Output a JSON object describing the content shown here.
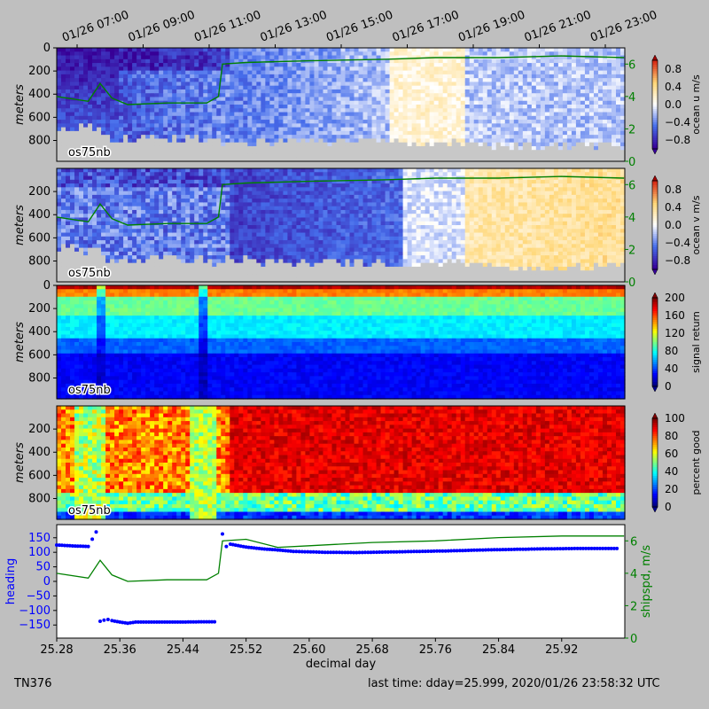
{
  "chart_data": [
    {
      "type": "heatmap",
      "instrument_label": "os75nb",
      "ylabel": "meters",
      "yticks": [
        0,
        200,
        400,
        600,
        800
      ],
      "ylim": [
        0,
        980
      ],
      "inverted_y": true,
      "top_time_ticks": [
        "01/26 07:00",
        "01/26 09:00",
        "01/26 11:00",
        "01/26 13:00",
        "01/26 15:00",
        "01/26 17:00",
        "01/26 19:00",
        "01/26 21:00",
        "01/26 23:00"
      ],
      "colorbar": {
        "label": "ocean u m/s",
        "ticks": [
          "0.8",
          "0.4",
          "0.0",
          "−0.4",
          "−0.8"
        ],
        "range": [
          -1,
          1
        ],
        "colormap": "blue-white-red"
      },
      "right_axis": {
        "ticks": [
          "6",
          "4",
          "2",
          "0"
        ],
        "range": [
          0,
          7
        ],
        "color": "#008000"
      },
      "overlay_shipspd_kts": [
        [
          25.28,
          4.0
        ],
        [
          25.32,
          3.7
        ],
        [
          25.335,
          4.8
        ],
        [
          25.35,
          3.9
        ],
        [
          25.37,
          3.5
        ],
        [
          25.42,
          3.6
        ],
        [
          25.47,
          3.6
        ],
        [
          25.485,
          4.0
        ],
        [
          25.49,
          6.0
        ],
        [
          25.52,
          6.1
        ],
        [
          25.6,
          6.2
        ],
        [
          25.7,
          6.3
        ],
        [
          25.76,
          6.4
        ],
        [
          25.84,
          6.4
        ],
        [
          25.92,
          6.5
        ],
        [
          25.999,
          6.4
        ]
      ]
    },
    {
      "type": "heatmap",
      "instrument_label": "os75nb",
      "ylabel": "meters",
      "yticks": [
        200,
        400,
        600,
        800
      ],
      "ylim": [
        0,
        980
      ],
      "inverted_y": true,
      "colorbar": {
        "label": "ocean v m/s",
        "ticks": [
          "0.8",
          "0.4",
          "0.0",
          "−0.4",
          "−0.8"
        ],
        "range": [
          -1,
          1
        ],
        "colormap": "blue-white-red"
      },
      "right_axis": {
        "ticks": [
          "6",
          "4",
          "2",
          "0"
        ],
        "range": [
          0,
          7
        ],
        "color": "#008000"
      },
      "overlay_shipspd_kts": [
        [
          25.28,
          4.0
        ],
        [
          25.32,
          3.7
        ],
        [
          25.335,
          4.8
        ],
        [
          25.35,
          3.9
        ],
        [
          25.37,
          3.5
        ],
        [
          25.42,
          3.6
        ],
        [
          25.47,
          3.6
        ],
        [
          25.485,
          4.0
        ],
        [
          25.49,
          6.0
        ],
        [
          25.52,
          6.1
        ],
        [
          25.6,
          6.2
        ],
        [
          25.7,
          6.3
        ],
        [
          25.76,
          6.4
        ],
        [
          25.84,
          6.4
        ],
        [
          25.92,
          6.5
        ],
        [
          25.999,
          6.4
        ]
      ]
    },
    {
      "type": "heatmap",
      "instrument_label": "os75nb",
      "ylabel": "meters",
      "yticks": [
        0,
        200,
        400,
        600,
        800
      ],
      "ylim": [
        0,
        980
      ],
      "inverted_y": true,
      "colorbar": {
        "label": "signal return",
        "ticks": [
          "200",
          "160",
          "120",
          "80",
          "40",
          "0"
        ],
        "range": [
          0,
          200
        ],
        "colormap": "jet"
      }
    },
    {
      "type": "heatmap",
      "instrument_label": "os75nb",
      "ylabel": "meters",
      "yticks": [
        200,
        400,
        600,
        800
      ],
      "ylim": [
        0,
        980
      ],
      "inverted_y": true,
      "colorbar": {
        "label": "percent good",
        "ticks": [
          "100",
          "80",
          "60",
          "40",
          "20",
          "0"
        ],
        "range": [
          0,
          100
        ],
        "colormap": "jet"
      }
    },
    {
      "type": "scatter",
      "ylabel": "heading",
      "y2label": "shipspd, m/s",
      "xlabel": "decimal day",
      "xticks": [
        "25.28",
        "25.36",
        "25.44",
        "25.52",
        "25.60",
        "25.68",
        "25.76",
        "25.84",
        "25.92"
      ],
      "xlim": [
        25.28,
        26.0
      ],
      "yticks": [
        "150",
        "100",
        "50",
        "0",
        "−50",
        "−100",
        "−150"
      ],
      "ylim": [
        -195,
        195
      ],
      "y2ticks": [
        "6",
        "4",
        "2",
        "0"
      ],
      "y2lim": [
        0,
        7
      ],
      "heading_color": "#0000ff",
      "shipspd_color": "#008000",
      "heading_points": [
        [
          25.28,
          125
        ],
        [
          25.3,
          122
        ],
        [
          25.32,
          120
        ],
        [
          25.325,
          145
        ],
        [
          25.33,
          170
        ],
        [
          25.335,
          -137
        ],
        [
          25.34,
          -133
        ],
        [
          25.345,
          -131
        ],
        [
          25.35,
          -135
        ],
        [
          25.36,
          -140
        ],
        [
          25.37,
          -144
        ],
        [
          25.38,
          -140
        ],
        [
          25.4,
          -140
        ],
        [
          25.42,
          -140
        ],
        [
          25.44,
          -140
        ],
        [
          25.46,
          -139
        ],
        [
          25.48,
          -139
        ],
        [
          25.49,
          163
        ],
        [
          25.495,
          120
        ],
        [
          25.5,
          128
        ],
        [
          25.52,
          118
        ],
        [
          25.54,
          112
        ],
        [
          25.56,
          108
        ],
        [
          25.58,
          103
        ],
        [
          25.62,
          100
        ],
        [
          25.66,
          99
        ],
        [
          25.7,
          101
        ],
        [
          25.74,
          103
        ],
        [
          25.78,
          105
        ],
        [
          25.82,
          108
        ],
        [
          25.86,
          110
        ],
        [
          25.9,
          112
        ],
        [
          25.94,
          113
        ],
        [
          25.99,
          113
        ]
      ],
      "shipspd_line": [
        [
          25.28,
          4.0
        ],
        [
          25.32,
          3.7
        ],
        [
          25.335,
          4.8
        ],
        [
          25.35,
          3.9
        ],
        [
          25.37,
          3.5
        ],
        [
          25.42,
          3.6
        ],
        [
          25.47,
          3.6
        ],
        [
          25.485,
          4.0
        ],
        [
          25.49,
          6.0
        ],
        [
          25.52,
          6.1
        ],
        [
          25.56,
          5.6
        ],
        [
          25.6,
          5.7
        ],
        [
          25.68,
          5.9
        ],
        [
          25.76,
          6.0
        ],
        [
          25.84,
          6.2
        ],
        [
          25.92,
          6.3
        ],
        [
          25.999,
          6.3
        ]
      ]
    }
  ],
  "footer": {
    "cruise": "TN376",
    "last_time": "last time: dday=25.999,  2020/01/26 23:58:32 UTC"
  }
}
